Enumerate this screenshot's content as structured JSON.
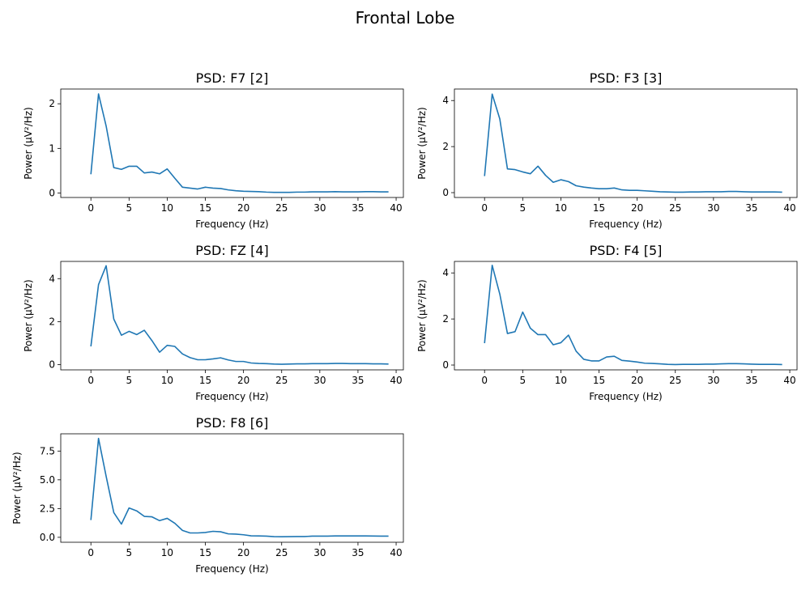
{
  "figure": {
    "title": "Frontal Lobe",
    "line_color": "#1f77b4"
  },
  "chart_data": [
    {
      "type": "line",
      "title": "PSD: F7 [2]",
      "xlabel": "Frequency (Hz)",
      "ylabel": "Power (µV²/Hz)",
      "xlim": [
        -3.95,
        40.95
      ],
      "ylim": [
        -0.1,
        2.33
      ],
      "xticks": [
        0,
        5,
        10,
        15,
        20,
        25,
        30,
        35,
        40
      ],
      "yticks": [
        0,
        1,
        2
      ],
      "x": [
        0,
        1,
        2,
        3,
        4,
        5,
        6,
        7,
        8,
        9,
        10,
        11,
        12,
        13,
        14,
        15,
        16,
        17,
        18,
        19,
        20,
        21,
        22,
        23,
        24,
        25,
        26,
        27,
        28,
        29,
        30,
        31,
        32,
        33,
        34,
        35,
        36,
        37,
        38,
        39
      ],
      "series": [
        {
          "values": [
            0.42,
            2.22,
            1.5,
            0.57,
            0.53,
            0.6,
            0.6,
            0.45,
            0.47,
            0.43,
            0.54,
            0.33,
            0.13,
            0.11,
            0.09,
            0.13,
            0.11,
            0.1,
            0.07,
            0.05,
            0.04,
            0.035,
            0.03,
            0.02,
            0.015,
            0.015,
            0.015,
            0.02,
            0.02,
            0.025,
            0.025,
            0.025,
            0.03,
            0.025,
            0.025,
            0.025,
            0.03,
            0.03,
            0.025,
            0.025
          ]
        }
      ]
    },
    {
      "type": "line",
      "title": "PSD: F3 [3]",
      "xlabel": "Frequency (Hz)",
      "ylabel": "Power (µV²/Hz)",
      "xlim": [
        -3.95,
        40.95
      ],
      "ylim": [
        -0.21,
        4.5
      ],
      "xticks": [
        0,
        5,
        10,
        15,
        20,
        25,
        30,
        35,
        40
      ],
      "yticks": [
        0,
        2,
        4
      ],
      "x": [
        0,
        1,
        2,
        3,
        4,
        5,
        6,
        7,
        8,
        9,
        10,
        11,
        12,
        13,
        14,
        15,
        16,
        17,
        18,
        19,
        20,
        21,
        22,
        23,
        24,
        25,
        26,
        27,
        28,
        29,
        30,
        31,
        32,
        33,
        34,
        35,
        36,
        37,
        38,
        39
      ],
      "series": [
        {
          "values": [
            0.72,
            4.28,
            3.2,
            1.03,
            1.0,
            0.9,
            0.82,
            1.15,
            0.75,
            0.45,
            0.56,
            0.48,
            0.3,
            0.24,
            0.2,
            0.17,
            0.17,
            0.2,
            0.12,
            0.1,
            0.1,
            0.08,
            0.06,
            0.04,
            0.03,
            0.02,
            0.02,
            0.03,
            0.03,
            0.04,
            0.04,
            0.04,
            0.05,
            0.05,
            0.04,
            0.03,
            0.03,
            0.03,
            0.03,
            0.02
          ]
        }
      ]
    },
    {
      "type": "line",
      "title": "PSD: FZ [4]",
      "xlabel": "Frequency (Hz)",
      "ylabel": "Power (µV²/Hz)",
      "xlim": [
        -3.95,
        40.95
      ],
      "ylim": [
        -0.24,
        4.8
      ],
      "xticks": [
        0,
        5,
        10,
        15,
        20,
        25,
        30,
        35,
        40
      ],
      "yticks": [
        0,
        2,
        4
      ],
      "x": [
        0,
        1,
        2,
        3,
        4,
        5,
        6,
        7,
        8,
        9,
        10,
        11,
        12,
        13,
        14,
        15,
        16,
        17,
        18,
        19,
        20,
        21,
        22,
        23,
        24,
        25,
        26,
        27,
        28,
        29,
        30,
        31,
        32,
        33,
        34,
        35,
        36,
        37,
        38,
        39
      ],
      "series": [
        {
          "values": [
            0.85,
            3.72,
            4.6,
            2.12,
            1.37,
            1.55,
            1.4,
            1.6,
            1.12,
            0.58,
            0.9,
            0.85,
            0.5,
            0.33,
            0.23,
            0.23,
            0.27,
            0.32,
            0.22,
            0.15,
            0.15,
            0.08,
            0.06,
            0.05,
            0.03,
            0.02,
            0.03,
            0.04,
            0.04,
            0.05,
            0.05,
            0.05,
            0.06,
            0.06,
            0.05,
            0.05,
            0.05,
            0.04,
            0.04,
            0.03
          ]
        }
      ]
    },
    {
      "type": "line",
      "title": "PSD: F4 [5]",
      "xlabel": "Frequency (Hz)",
      "ylabel": "Power (µV²/Hz)",
      "xlim": [
        -3.95,
        40.95
      ],
      "ylim": [
        -0.21,
        4.5
      ],
      "xticks": [
        0,
        5,
        10,
        15,
        20,
        25,
        30,
        35,
        40
      ],
      "yticks": [
        0,
        2,
        4
      ],
      "x": [
        0,
        1,
        2,
        3,
        4,
        5,
        6,
        7,
        8,
        9,
        10,
        11,
        12,
        13,
        14,
        15,
        16,
        17,
        18,
        19,
        20,
        21,
        22,
        23,
        24,
        25,
        26,
        27,
        28,
        29,
        30,
        31,
        32,
        33,
        34,
        35,
        36,
        37,
        38,
        39
      ],
      "series": [
        {
          "values": [
            0.95,
            4.33,
            3.08,
            1.37,
            1.45,
            2.3,
            1.6,
            1.32,
            1.32,
            0.88,
            0.97,
            1.3,
            0.6,
            0.25,
            0.18,
            0.18,
            0.35,
            0.38,
            0.2,
            0.17,
            0.13,
            0.08,
            0.07,
            0.05,
            0.03,
            0.02,
            0.03,
            0.03,
            0.03,
            0.04,
            0.04,
            0.05,
            0.06,
            0.06,
            0.05,
            0.04,
            0.03,
            0.03,
            0.03,
            0.02
          ]
        }
      ]
    },
    {
      "type": "line",
      "title": "PSD: F8 [6]",
      "xlabel": "Frequency (Hz)",
      "ylabel": "Power (µV²/Hz)",
      "xlim": [
        -3.95,
        40.95
      ],
      "ylim": [
        -0.43,
        9.0
      ],
      "xticks": [
        0,
        5,
        10,
        15,
        20,
        25,
        30,
        35,
        40
      ],
      "yticks": [
        0.0,
        2.5,
        5.0,
        7.5
      ],
      "yticklabels": [
        "0.0",
        "2.5",
        "5.0",
        "7.5"
      ],
      "x": [
        0,
        1,
        2,
        3,
        4,
        5,
        6,
        7,
        8,
        9,
        10,
        11,
        12,
        13,
        14,
        15,
        16,
        17,
        18,
        19,
        20,
        21,
        22,
        23,
        24,
        25,
        26,
        27,
        28,
        29,
        30,
        31,
        32,
        33,
        34,
        35,
        36,
        37,
        38,
        39
      ],
      "series": [
        {
          "values": [
            1.5,
            8.6,
            5.3,
            2.15,
            1.15,
            2.55,
            2.3,
            1.82,
            1.78,
            1.45,
            1.65,
            1.22,
            0.6,
            0.38,
            0.38,
            0.42,
            0.52,
            0.48,
            0.3,
            0.28,
            0.22,
            0.13,
            0.12,
            0.1,
            0.06,
            0.05,
            0.06,
            0.07,
            0.07,
            0.1,
            0.1,
            0.1,
            0.12,
            0.12,
            0.12,
            0.12,
            0.12,
            0.11,
            0.1,
            0.1
          ]
        }
      ]
    }
  ]
}
